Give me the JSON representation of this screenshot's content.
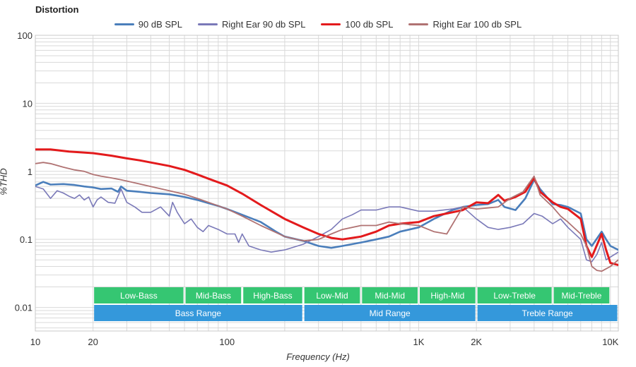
{
  "chart_data": {
    "type": "line",
    "title": "Distortion",
    "xlabel": "Frequency (Hz)",
    "ylabel": "%THD",
    "x_scale": "log",
    "y_scale": "log",
    "xlim": [
      10,
      11000
    ],
    "ylim": [
      0.0045,
      100
    ],
    "grid": true,
    "legend_position": "top-center",
    "x_ticks": [
      {
        "value": 10,
        "label": "10"
      },
      {
        "value": 20,
        "label": "20"
      },
      {
        "value": 100,
        "label": "100"
      },
      {
        "value": 1000,
        "label": "1K"
      },
      {
        "value": 2000,
        "label": "2K"
      },
      {
        "value": 10000,
        "label": "10K"
      }
    ],
    "y_ticks": [
      {
        "value": 100,
        "label": "100"
      },
      {
        "value": 10,
        "label": "10"
      },
      {
        "value": 1,
        "label": "1"
      },
      {
        "value": 0.1,
        "label": "0.1"
      },
      {
        "value": 0.01,
        "label": "0.01"
      }
    ],
    "series": [
      {
        "name": "90 dB SPL",
        "color": "#4a7ebb",
        "points": [
          [
            10,
            0.62
          ],
          [
            11,
            0.7
          ],
          [
            12,
            0.64
          ],
          [
            14,
            0.65
          ],
          [
            16,
            0.63
          ],
          [
            18,
            0.6
          ],
          [
            20,
            0.58
          ],
          [
            22,
            0.55
          ],
          [
            25,
            0.56
          ],
          [
            27,
            0.5
          ],
          [
            28,
            0.6
          ],
          [
            30,
            0.52
          ],
          [
            35,
            0.5
          ],
          [
            40,
            0.48
          ],
          [
            45,
            0.47
          ],
          [
            50,
            0.46
          ],
          [
            55,
            0.44
          ],
          [
            60,
            0.42
          ],
          [
            70,
            0.38
          ],
          [
            80,
            0.34
          ],
          [
            90,
            0.31
          ],
          [
            100,
            0.28
          ],
          [
            120,
            0.23
          ],
          [
            150,
            0.18
          ],
          [
            180,
            0.13
          ],
          [
            200,
            0.11
          ],
          [
            250,
            0.095
          ],
          [
            300,
            0.08
          ],
          [
            350,
            0.075
          ],
          [
            400,
            0.08
          ],
          [
            500,
            0.09
          ],
          [
            600,
            0.1
          ],
          [
            700,
            0.11
          ],
          [
            800,
            0.13
          ],
          [
            1000,
            0.15
          ],
          [
            1200,
            0.2
          ],
          [
            1500,
            0.27
          ],
          [
            1700,
            0.3
          ],
          [
            2000,
            0.32
          ],
          [
            2300,
            0.33
          ],
          [
            2600,
            0.38
          ],
          [
            2800,
            0.3
          ],
          [
            3200,
            0.27
          ],
          [
            3600,
            0.4
          ],
          [
            4000,
            0.75
          ],
          [
            4300,
            0.55
          ],
          [
            5000,
            0.33
          ],
          [
            5500,
            0.32
          ],
          [
            6000,
            0.3
          ],
          [
            7000,
            0.24
          ],
          [
            7500,
            0.1
          ],
          [
            8000,
            0.08
          ],
          [
            9000,
            0.13
          ],
          [
            9500,
            0.1
          ],
          [
            10000,
            0.08
          ],
          [
            11000,
            0.07
          ]
        ]
      },
      {
        "name": "Right Ear 90 db SPL",
        "color": "#7a79b8",
        "points": [
          [
            10,
            0.6
          ],
          [
            11,
            0.55
          ],
          [
            12,
            0.4
          ],
          [
            13,
            0.52
          ],
          [
            14,
            0.48
          ],
          [
            15,
            0.43
          ],
          [
            16,
            0.4
          ],
          [
            17,
            0.45
          ],
          [
            18,
            0.38
          ],
          [
            19,
            0.42
          ],
          [
            20,
            0.3
          ],
          [
            21,
            0.38
          ],
          [
            22,
            0.42
          ],
          [
            24,
            0.35
          ],
          [
            26,
            0.34
          ],
          [
            28,
            0.55
          ],
          [
            30,
            0.35
          ],
          [
            33,
            0.3
          ],
          [
            36,
            0.25
          ],
          [
            40,
            0.25
          ],
          [
            45,
            0.3
          ],
          [
            50,
            0.22
          ],
          [
            52,
            0.35
          ],
          [
            55,
            0.25
          ],
          [
            60,
            0.17
          ],
          [
            65,
            0.2
          ],
          [
            70,
            0.15
          ],
          [
            75,
            0.13
          ],
          [
            80,
            0.16
          ],
          [
            90,
            0.14
          ],
          [
            100,
            0.12
          ],
          [
            110,
            0.12
          ],
          [
            115,
            0.09
          ],
          [
            120,
            0.12
          ],
          [
            130,
            0.08
          ],
          [
            150,
            0.07
          ],
          [
            170,
            0.065
          ],
          [
            200,
            0.07
          ],
          [
            250,
            0.085
          ],
          [
            300,
            0.11
          ],
          [
            350,
            0.14
          ],
          [
            400,
            0.2
          ],
          [
            450,
            0.23
          ],
          [
            500,
            0.27
          ],
          [
            600,
            0.27
          ],
          [
            700,
            0.3
          ],
          [
            800,
            0.3
          ],
          [
            1000,
            0.26
          ],
          [
            1200,
            0.26
          ],
          [
            1500,
            0.28
          ],
          [
            1700,
            0.3
          ],
          [
            2000,
            0.2
          ],
          [
            2300,
            0.15
          ],
          [
            2600,
            0.14
          ],
          [
            3000,
            0.15
          ],
          [
            3500,
            0.17
          ],
          [
            4000,
            0.24
          ],
          [
            4400,
            0.22
          ],
          [
            5000,
            0.17
          ],
          [
            5500,
            0.2
          ],
          [
            6000,
            0.15
          ],
          [
            7000,
            0.1
          ],
          [
            7500,
            0.05
          ],
          [
            8000,
            0.047
          ],
          [
            8500,
            0.06
          ],
          [
            9000,
            0.09
          ],
          [
            9500,
            0.05
          ],
          [
            10000,
            0.055
          ],
          [
            11000,
            0.065
          ]
        ]
      },
      {
        "name": "100 db SPL",
        "color": "#e31a1c",
        "points": [
          [
            10,
            2.1
          ],
          [
            12,
            2.1
          ],
          [
            15,
            1.95
          ],
          [
            20,
            1.85
          ],
          [
            25,
            1.7
          ],
          [
            30,
            1.55
          ],
          [
            35,
            1.45
          ],
          [
            40,
            1.35
          ],
          [
            50,
            1.2
          ],
          [
            60,
            1.05
          ],
          [
            70,
            0.9
          ],
          [
            80,
            0.78
          ],
          [
            100,
            0.62
          ],
          [
            120,
            0.47
          ],
          [
            150,
            0.32
          ],
          [
            200,
            0.2
          ],
          [
            250,
            0.15
          ],
          [
            300,
            0.12
          ],
          [
            350,
            0.105
          ],
          [
            400,
            0.1
          ],
          [
            450,
            0.105
          ],
          [
            500,
            0.11
          ],
          [
            600,
            0.13
          ],
          [
            700,
            0.16
          ],
          [
            800,
            0.17
          ],
          [
            1000,
            0.18
          ],
          [
            1200,
            0.22
          ],
          [
            1500,
            0.25
          ],
          [
            1700,
            0.27
          ],
          [
            2000,
            0.35
          ],
          [
            2300,
            0.34
          ],
          [
            2600,
            0.45
          ],
          [
            2800,
            0.37
          ],
          [
            3200,
            0.42
          ],
          [
            3600,
            0.5
          ],
          [
            4000,
            0.8
          ],
          [
            4300,
            0.5
          ],
          [
            5000,
            0.35
          ],
          [
            5500,
            0.3
          ],
          [
            6000,
            0.28
          ],
          [
            7000,
            0.2
          ],
          [
            7500,
            0.08
          ],
          [
            8000,
            0.055
          ],
          [
            9000,
            0.12
          ],
          [
            9500,
            0.07
          ],
          [
            10000,
            0.045
          ],
          [
            11000,
            0.042
          ]
        ]
      },
      {
        "name": "Right Ear 100 db SPL",
        "color": "#b07272",
        "points": [
          [
            10,
            1.3
          ],
          [
            11,
            1.35
          ],
          [
            12,
            1.3
          ],
          [
            14,
            1.15
          ],
          [
            16,
            1.05
          ],
          [
            18,
            1.0
          ],
          [
            20,
            0.9
          ],
          [
            22,
            0.85
          ],
          [
            25,
            0.8
          ],
          [
            28,
            0.75
          ],
          [
            30,
            0.72
          ],
          [
            40,
            0.6
          ],
          [
            50,
            0.52
          ],
          [
            60,
            0.46
          ],
          [
            70,
            0.4
          ],
          [
            80,
            0.35
          ],
          [
            100,
            0.28
          ],
          [
            120,
            0.22
          ],
          [
            150,
            0.16
          ],
          [
            200,
            0.11
          ],
          [
            250,
            0.095
          ],
          [
            300,
            0.1
          ],
          [
            350,
            0.12
          ],
          [
            400,
            0.14
          ],
          [
            500,
            0.16
          ],
          [
            600,
            0.16
          ],
          [
            700,
            0.18
          ],
          [
            800,
            0.17
          ],
          [
            1000,
            0.16
          ],
          [
            1200,
            0.13
          ],
          [
            1400,
            0.12
          ],
          [
            1700,
            0.3
          ],
          [
            2000,
            0.28
          ],
          [
            2300,
            0.29
          ],
          [
            2600,
            0.3
          ],
          [
            3000,
            0.4
          ],
          [
            3500,
            0.5
          ],
          [
            4000,
            0.85
          ],
          [
            4300,
            0.45
          ],
          [
            5000,
            0.3
          ],
          [
            5500,
            0.22
          ],
          [
            6000,
            0.18
          ],
          [
            7000,
            0.12
          ],
          [
            7500,
            0.08
          ],
          [
            8000,
            0.04
          ],
          [
            8500,
            0.035
          ],
          [
            9000,
            0.034
          ],
          [
            10000,
            0.04
          ],
          [
            11000,
            0.05
          ]
        ]
      }
    ],
    "bands": [
      {
        "label": "Low-Bass",
        "from": 20,
        "to": 60,
        "row": 1,
        "color": "#35c672"
      },
      {
        "label": "Mid-Bass",
        "from": 60,
        "to": 120,
        "row": 1,
        "color": "#35c672"
      },
      {
        "label": "High-Bass",
        "from": 120,
        "to": 250,
        "row": 1,
        "color": "#35c672"
      },
      {
        "label": "Low-Mid",
        "from": 250,
        "to": 500,
        "row": 1,
        "color": "#35c672"
      },
      {
        "label": "Mid-Mid",
        "from": 500,
        "to": 1000,
        "row": 1,
        "color": "#35c672"
      },
      {
        "label": "High-Mid",
        "from": 1000,
        "to": 2000,
        "row": 1,
        "color": "#35c672"
      },
      {
        "label": "Low-Treble",
        "from": 2000,
        "to": 5000,
        "row": 1,
        "color": "#35c672"
      },
      {
        "label": "Mid-Treble",
        "from": 5000,
        "to": 10000,
        "row": 1,
        "color": "#35c672"
      },
      {
        "label": "Bass Range",
        "from": 20,
        "to": 250,
        "row": 2,
        "color": "#3498db"
      },
      {
        "label": "Mid Range",
        "from": 250,
        "to": 2000,
        "row": 2,
        "color": "#3498db"
      },
      {
        "label": "Treble Range",
        "from": 2000,
        "to": 11000,
        "row": 2,
        "color": "#3498db"
      }
    ]
  }
}
